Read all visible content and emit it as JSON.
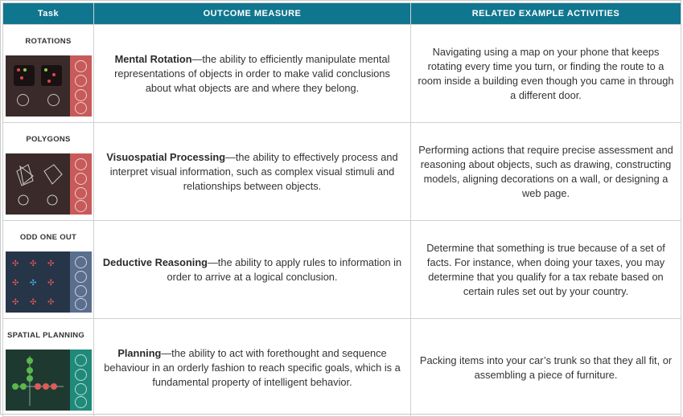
{
  "header": {
    "task": "Task",
    "measure": "OUTCOME MEASURE",
    "activities": "RELATED EXAMPLE ACTIVITIES"
  },
  "rows": [
    {
      "task": "ROTATIONS",
      "measure_term": "Mental Rotation",
      "measure_text": "—the ability to efficiently manipulate mental representations of objects in order to make valid conclusions about what objects are and where they belong.",
      "activity": "Navigating using a map on your phone that keeps rotating every time you turn, or finding the route to a room inside a building even though you came in through a different door.",
      "thumb_icon": "rotation-grid-icon",
      "thumb_colors": {
        "game": "#3a2a2a",
        "panel": "#c85a5a"
      }
    },
    {
      "task": "POLYGONS",
      "measure_term": "Visuospatial Processing",
      "measure_text": "—the ability to effectively process and interpret visual information, such as complex visual stimuli and relationships between objects.",
      "activity": "Performing actions that require precise assessment and reasoning about objects, such as drawing, constructing models, aligning decorations on a wall, or designing a web page.",
      "thumb_icon": "polygon-outline-icon",
      "thumb_colors": {
        "game": "#3a2a2a",
        "panel": "#c85a5a"
      }
    },
    {
      "task": "ODD ONE OUT",
      "measure_term": "Deductive Reasoning",
      "measure_text": "—the ability to apply rules to information in order to arrive at a logical conclusion.",
      "activity": "Determine that something is true because of a set of facts. For instance, when doing your taxes, you may determine that you qualify for a tax rebate based on certain rules set out by your country.",
      "thumb_icon": "symbol-grid-icon",
      "thumb_colors": {
        "game": "#263548",
        "panel": "#5a6e8e"
      }
    },
    {
      "task": "SPATIAL PLANNING",
      "measure_term": "Planning",
      "measure_text": "—the ability to act with forethought and sequence behaviour in an orderly fashion to reach specific goals, which is a fundamental property of intelligent behavior.",
      "activity": "Packing items into your car’s trunk so that they all fit, or assembling a piece of furniture.",
      "thumb_icon": "node-tree-icon",
      "thumb_colors": {
        "game": "#1e3a30",
        "panel": "#1f8a7a"
      }
    }
  ]
}
